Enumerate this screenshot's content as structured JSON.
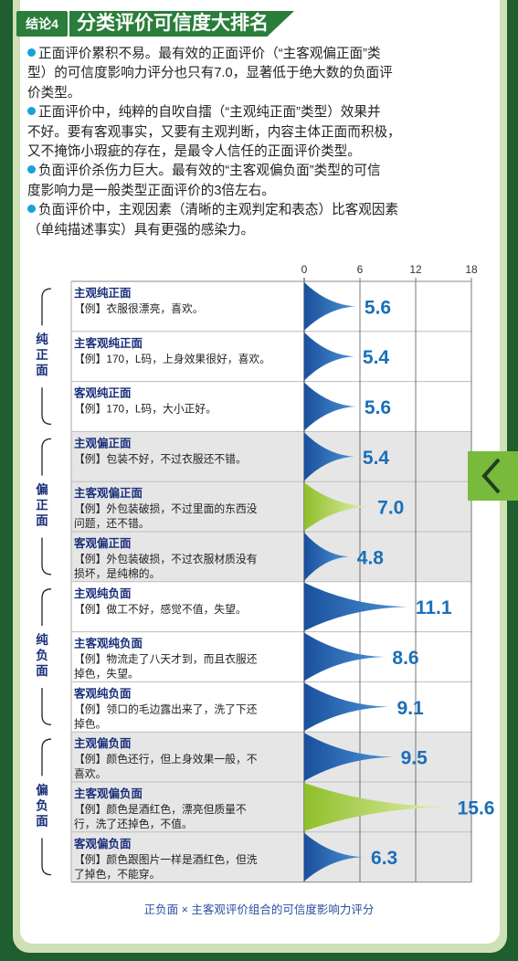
{
  "header": {
    "tag": "结论4",
    "title": "分类评价可信度大排名"
  },
  "bullets": [
    {
      "lines": [
        "正面评价累积不易。最有效的正面评价（“主客观偏正面”类",
        "型）的可信度影响力评分也只有7.0，显著低于绝大数的负面评",
        "价类型。"
      ]
    },
    {
      "lines": [
        "正面评价中，纯粹的自吹自擂（“主观纯正面”类型）效果并",
        "不好。要有客观事实，又要有主观判断，内容主体正面而积极，",
        "又不掩饰小瑕疵的存在，是最令人信任的正面评价类型。"
      ]
    },
    {
      "lines": [
        "负面评价杀伤力巨大。最有效的“主客观偏负面”类型的可信",
        "度影响力是一般类型正面评价的3倍左右。"
      ]
    },
    {
      "lines": [
        "负面评价中，主观因素（清晰的主观判定和表态）比客观因素",
        "（单纯描述事实）具有更强的感染力。"
      ]
    }
  ],
  "chart_data": {
    "type": "bar",
    "xlim": [
      0,
      18
    ],
    "ticks": [
      "0",
      "6",
      "12",
      "18"
    ],
    "tick_values": [
      0,
      6,
      12,
      18
    ],
    "groups": [
      {
        "label": "纯正面",
        "rows": [
          0,
          1,
          2
        ]
      },
      {
        "label": "偏正面",
        "rows": [
          3,
          4,
          5
        ]
      },
      {
        "label": "纯负面",
        "rows": [
          6,
          7,
          8
        ]
      },
      {
        "label": "偏负面",
        "rows": [
          9,
          10,
          11
        ]
      }
    ],
    "categories": [
      {
        "title": "主观纯正面",
        "example": [
          "【例】衣服很漂亮，喜欢。"
        ]
      },
      {
        "title": "主客观纯正面",
        "example": [
          "【例】170，L码，上身效果很好，喜欢。"
        ]
      },
      {
        "title": "客观纯正面",
        "example": [
          "【例】170，L码，大小正好。"
        ]
      },
      {
        "title": "主观偏正面",
        "example": [
          "【例】包装不好，不过衣服还不错。"
        ]
      },
      {
        "title": "主客观偏正面",
        "example": [
          "【例】外包装破损，不过里面的东西没",
          "问题，还不错。"
        ]
      },
      {
        "title": "客观偏正面",
        "example": [
          "【例】外包装破损，不过衣服材质没有",
          "损坏，是纯棉的。"
        ]
      },
      {
        "title": "主观纯负面",
        "example": [
          "【例】做工不好，感觉不值，失望。"
        ]
      },
      {
        "title": "主客观纯负面",
        "example": [
          "【例】物流走了八天才到，而且衣服还",
          "掉色，失望。"
        ]
      },
      {
        "title": "客观纯负面",
        "example": [
          "【例】领口的毛边露出来了，洗了下还",
          "掉色。"
        ]
      },
      {
        "title": "主观偏负面",
        "example": [
          "【例】颜色还行，但上身效果一般，不",
          "喜欢。"
        ]
      },
      {
        "title": "主客观偏负面",
        "example": [
          "【例】颜色是酒红色，漂亮但质量不",
          "行，洗了还掉色，不值。"
        ]
      },
      {
        "title": "客观偏负面",
        "example": [
          "【例】颜色跟图片一样是酒红色，但洗",
          "了掉色，不能穿。"
        ]
      }
    ],
    "values": [
      5.6,
      5.4,
      5.6,
      5.4,
      7.0,
      4.8,
      11.1,
      8.6,
      9.1,
      9.5,
      15.6,
      6.3
    ],
    "value_labels": [
      "5.6",
      "5.4",
      "5.6",
      "5.4",
      "7.0",
      "4.8",
      "11.1",
      "8.6",
      "9.1",
      "9.5",
      "15.6",
      "6.3"
    ],
    "highlight": [
      4,
      10
    ],
    "colors": {
      "bar": "#1a4f9c",
      "bar_light": "#4a94d6",
      "highlight": "#8fbf2a",
      "highlight_light": "#e4f0b0",
      "label": "#1b6fb8",
      "row_alt": "#e6e6e6"
    },
    "caption": "正负面 × 主客观评价组合的可信度影响力评分"
  },
  "side_tab": {
    "icon": "chevron-left-icon",
    "color": "#79b93c"
  }
}
